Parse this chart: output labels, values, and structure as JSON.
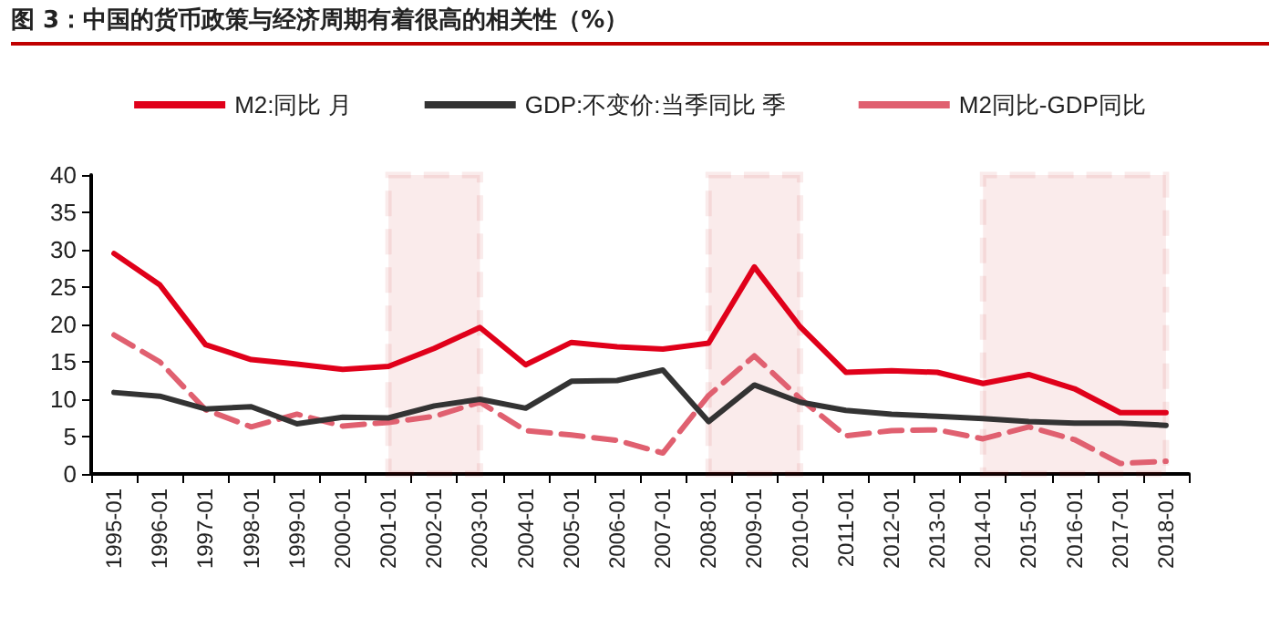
{
  "chart_data": {
    "type": "line",
    "title": "图 3：中国的货币政策与经济周期有着很高的相关性（%）",
    "categories": [
      "1995-01",
      "1996-01",
      "1997-01",
      "1998-01",
      "1999-01",
      "2000-01",
      "2001-01",
      "2002-01",
      "2003-01",
      "2004-01",
      "2005-01",
      "2006-01",
      "2007-01",
      "2008-01",
      "2009-01",
      "2010-01",
      "2011-01",
      "2012-01",
      "2013-01",
      "2014-01",
      "2015-01",
      "2016-01",
      "2017-01",
      "2018-01"
    ],
    "series": [
      {
        "name": "M2:同比 月",
        "color": "#e0001a",
        "line_style": "solid",
        "values": [
          29.5,
          25.3,
          17.3,
          15.3,
          14.7,
          14.0,
          14.4,
          16.8,
          19.6,
          14.6,
          17.6,
          17.0,
          16.7,
          17.5,
          27.7,
          19.7,
          13.6,
          13.8,
          13.6,
          12.1,
          13.3,
          11.4,
          8.2,
          8.2
        ]
      },
      {
        "name": "GDP:不变价:当季同比 季",
        "color": "#333333",
        "line_style": "solid",
        "values": [
          10.9,
          10.4,
          8.7,
          9.0,
          6.7,
          7.6,
          7.5,
          9.1,
          10.0,
          8.8,
          12.4,
          12.5,
          13.9,
          7.0,
          11.9,
          9.6,
          8.5,
          8.0,
          7.7,
          7.4,
          7.0,
          6.8,
          6.8,
          6.5
        ]
      },
      {
        "name": "M2同比-GDP同比",
        "color": "#e06070",
        "line_style": "dashed",
        "values": [
          18.6,
          15.0,
          8.6,
          6.3,
          8.0,
          6.4,
          6.9,
          7.7,
          9.6,
          5.8,
          5.2,
          4.5,
          2.8,
          10.5,
          15.8,
          10.1,
          5.1,
          5.8,
          5.9,
          4.7,
          6.3,
          4.6,
          1.4,
          1.7
        ]
      }
    ],
    "ylim": [
      0,
      40
    ],
    "yticks": [
      0,
      5,
      10,
      15,
      20,
      25,
      30,
      35,
      40
    ],
    "bands": [
      {
        "axis": "x",
        "from": "2001-01",
        "to": "2003-01",
        "color": "#c00000"
      },
      {
        "axis": "x",
        "from": "2008-01",
        "to": "2010-01",
        "color": "#c00000"
      },
      {
        "axis": "x",
        "from": "2014-01",
        "to": "2018-01",
        "color": "#c00000"
      }
    ],
    "grid": false,
    "legend": "top",
    "marker": "none"
  }
}
